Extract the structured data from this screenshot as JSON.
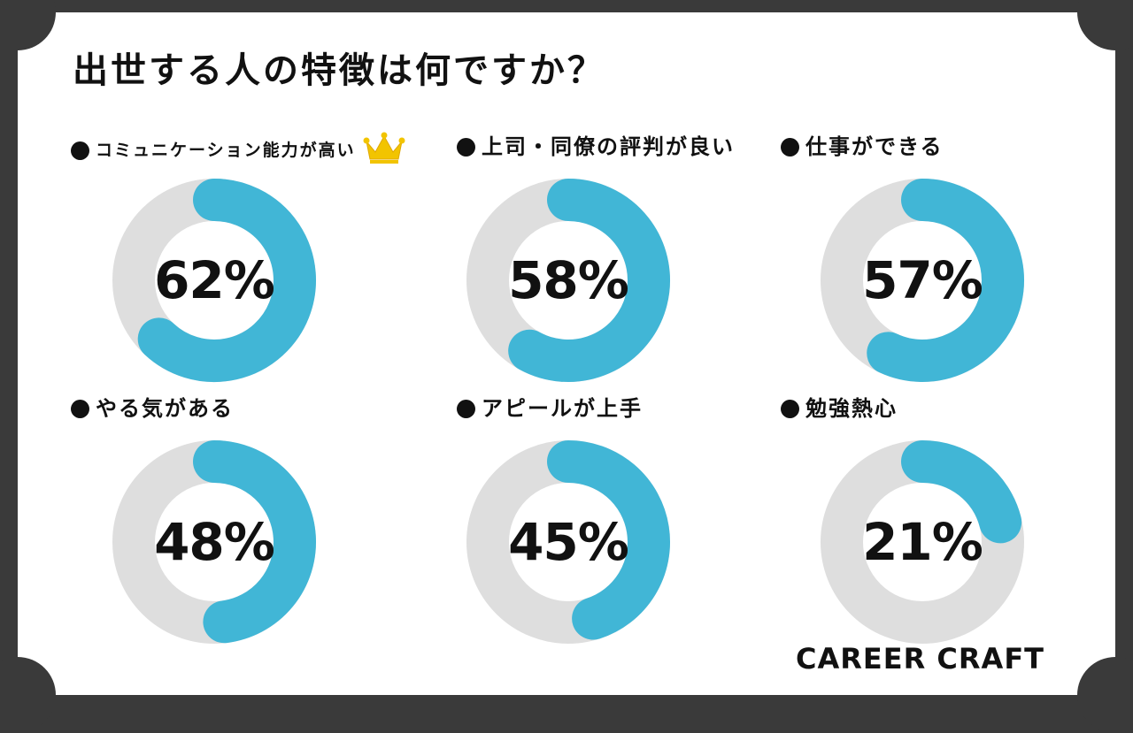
{
  "title": "出世する人の特徴は何ですか？",
  "brand": "CAREER CRAFT",
  "colors": {
    "accent": "#41b6d6",
    "track": "#dedede",
    "text": "#111111",
    "crown": "#f2c400"
  },
  "chart_data": {
    "type": "pie",
    "title": "出世する人の特徴は何ですか？",
    "unit": "%",
    "max": 100,
    "items": [
      {
        "label": "コミュニケーション能力が高い",
        "value": 62,
        "display": "62%",
        "icon": "crown-icon"
      },
      {
        "label": "上司・同僚の評判が良い",
        "value": 58,
        "display": "58%"
      },
      {
        "label": "仕事ができる",
        "value": 57,
        "display": "57%"
      },
      {
        "label": "やる気がある",
        "value": 48,
        "display": "48%"
      },
      {
        "label": "アピールが上手",
        "value": 45,
        "display": "45%"
      },
      {
        "label": "勉強熱心",
        "value": 21,
        "display": "21%"
      }
    ]
  }
}
